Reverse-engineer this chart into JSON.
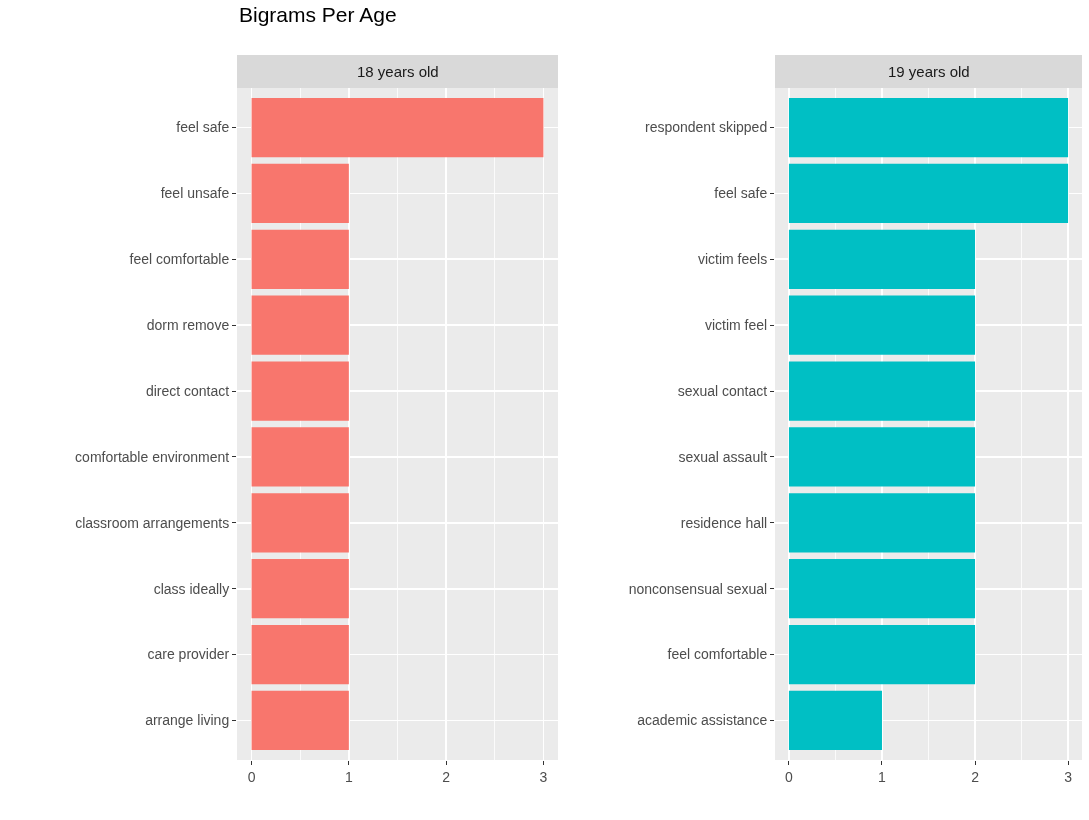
{
  "chart_data": [
    {
      "type": "bar",
      "title": "Bigrams Per Age",
      "subtitle": "18 years old",
      "orientation": "horizontal",
      "categories": [
        "feel safe",
        "feel unsafe",
        "feel comfortable",
        "dorm remove",
        "direct contact",
        "comfortable environment",
        "classroom arrangements",
        "class ideally",
        "care provider",
        "arrange living"
      ],
      "values": [
        3,
        1,
        1,
        1,
        1,
        1,
        1,
        1,
        1,
        1
      ],
      "color": "#f8766d",
      "xlim": [
        -0.15,
        3.15
      ],
      "xticks": [
        0,
        1,
        2,
        3
      ],
      "grid": true
    },
    {
      "type": "bar",
      "subtitle": "19 years old",
      "orientation": "horizontal",
      "categories": [
        "respondent skipped",
        "feel safe",
        "victim feels",
        "victim feel",
        "sexual contact",
        "sexual assault",
        "residence hall",
        "nonconsensual sexual",
        "feel comfortable",
        "academic assistance"
      ],
      "values": [
        3,
        3,
        2,
        2,
        2,
        2,
        2,
        2,
        2,
        1
      ],
      "color": "#00bfc4",
      "xlim": [
        -0.15,
        3.15
      ],
      "xticks": [
        0,
        1,
        2,
        3
      ],
      "grid": true
    }
  ]
}
